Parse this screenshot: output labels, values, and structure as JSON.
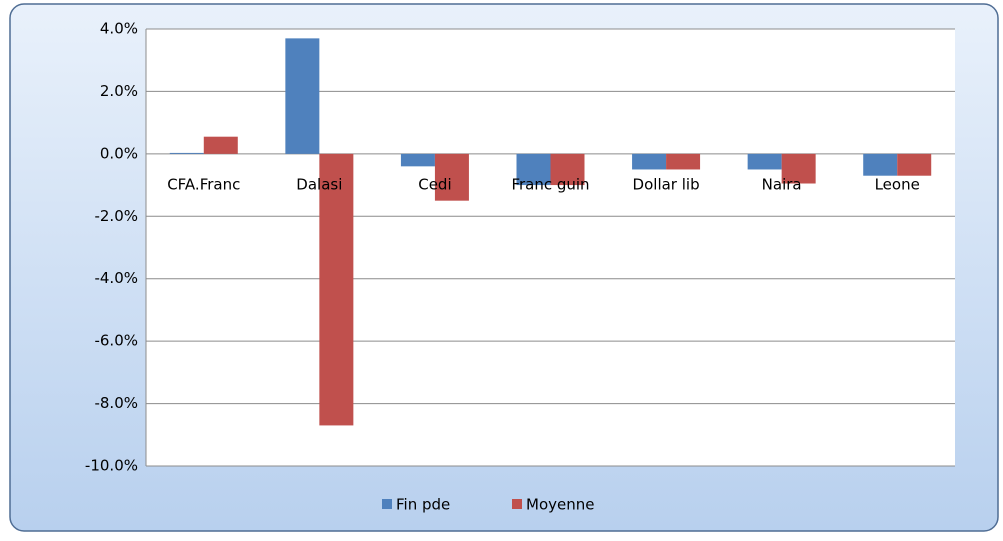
{
  "chart_data": {
    "type": "bar",
    "categories": [
      "CFA.Franc",
      "Dalasi",
      "Cedi",
      "Franc guin",
      "Dollar lib",
      "Naira",
      "Leone"
    ],
    "series": [
      {
        "name": "Fin pde",
        "color": "#4f81bd",
        "values": [
          0.03,
          3.7,
          -0.4,
          -1.0,
          -0.5,
          -0.5,
          -0.7
        ]
      },
      {
        "name": "Moyenne",
        "color": "#c0504d",
        "values": [
          0.55,
          -8.7,
          -1.5,
          -1.0,
          -0.5,
          -0.95,
          -0.7
        ]
      }
    ],
    "ylim": [
      -10,
      4
    ],
    "yticks": [
      {
        "value": 4,
        "label": "4.0%"
      },
      {
        "value": 2,
        "label": "2.0%"
      },
      {
        "value": 0,
        "label": "0.0%"
      },
      {
        "value": -2,
        "label": "-2.0%"
      },
      {
        "value": -4,
        "label": "-4.0%"
      },
      {
        "value": -6,
        "label": "-6.0%"
      },
      {
        "value": -8,
        "label": "-8.0%"
      },
      {
        "value": -10,
        "label": "-10.0%"
      }
    ],
    "grid": true,
    "legend": "bottom"
  }
}
